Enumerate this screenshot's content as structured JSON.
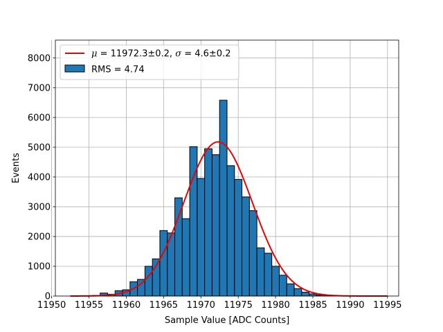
{
  "chart_data": {
    "type": "bar",
    "xlabel": "Sample Value [ADC Counts]",
    "ylabel": "Events",
    "xlim": [
      11950.5,
      11996.5
    ],
    "ylim": [
      0,
      8600
    ],
    "grid": true,
    "legend_position": "top-left",
    "xticks": [
      11950,
      11955,
      11960,
      11965,
      11970,
      11975,
      11980,
      11985,
      11990,
      11995
    ],
    "yticks": [
      0,
      1000,
      2000,
      3000,
      4000,
      5000,
      6000,
      7000,
      8000
    ],
    "bin_width": 1,
    "histogram": {
      "name": "RMS = 4.74",
      "color": "#1f77b4",
      "edge_color": "#000000",
      "bin_centers": [
        11955,
        11956,
        11957,
        11958,
        11959,
        11960,
        11961,
        11962,
        11963,
        11964,
        11965,
        11966,
        11967,
        11968,
        11969,
        11970,
        11971,
        11972,
        11973,
        11974,
        11975,
        11976,
        11977,
        11978,
        11979,
        11980,
        11981,
        11982,
        11983,
        11984,
        11985,
        11986,
        11987,
        11988,
        11989,
        11990
      ],
      "values": [
        10,
        20,
        100,
        60,
        180,
        210,
        480,
        560,
        1000,
        1250,
        2200,
        2120,
        3300,
        2600,
        5020,
        3950,
        4950,
        4750,
        6580,
        4380,
        3920,
        3330,
        2870,
        1620,
        1440,
        1000,
        700,
        410,
        250,
        130,
        70,
        35,
        20,
        10,
        5,
        2
      ]
    },
    "fit": {
      "label_mu_symbol": "μ",
      "label_mu_text": " = 11972.3±0.2, ",
      "label_sigma_symbol": "σ",
      "label_sigma_text": " = 4.6±0.2",
      "color": "#ee0000",
      "mu": 11972.3,
      "sigma": 4.6,
      "amplitude": 5180,
      "x_range": [
        11952.5,
        11995
      ]
    }
  }
}
